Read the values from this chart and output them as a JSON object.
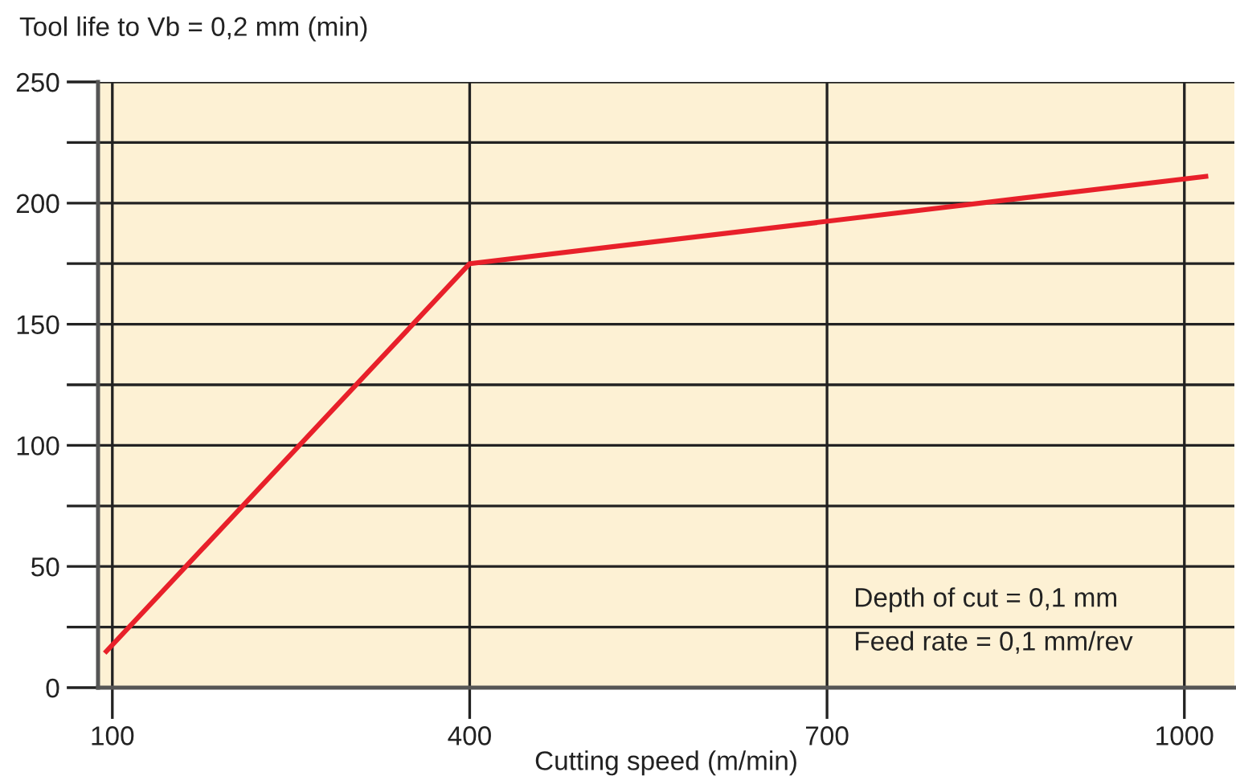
{
  "chart_data": {
    "type": "line",
    "xlabel": "Cutting speed (m/min)",
    "ylabel": "Tool life to Vb = 0,2 mm (min)",
    "x": [
      95,
      400,
      1018
    ],
    "series": [
      {
        "color": "#e8202a",
        "values": [
          15,
          175,
          211
        ]
      }
    ],
    "xlim": [
      88,
      1042
    ],
    "xticks": [
      100,
      400,
      700,
      1000
    ],
    "ylim": [
      0,
      250
    ],
    "yticks": [
      0,
      {
        "value": 25,
        "label": null
      },
      50,
      {
        "value": 75,
        "label": null
      },
      100,
      {
        "value": 125,
        "label": null
      },
      150,
      {
        "value": 175,
        "label": null
      },
      200,
      {
        "value": 225,
        "label": null
      },
      250
    ],
    "grid": true,
    "marker": "none",
    "line_style": "solid",
    "annotations": [
      "Depth of cut = 0,1 mm",
      "Feed rate = 0,1 mm/rev"
    ]
  }
}
